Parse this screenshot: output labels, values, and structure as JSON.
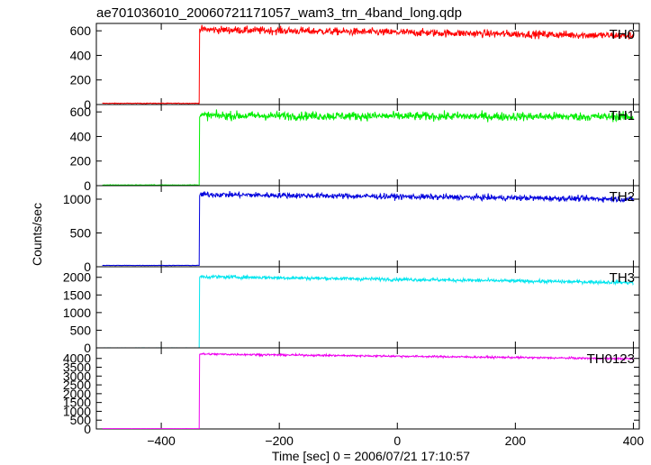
{
  "chart_data": {
    "type": "line",
    "title": "ae701036010_20060721171057_wam3_trn_4band_long.qdp",
    "xlabel": "Time [sec] 0 = 2006/07/21 17:10:57",
    "ylabel": "Counts/sec",
    "xlim": [
      -510,
      410
    ],
    "xticks": [
      -400,
      -200,
      0,
      200,
      400
    ],
    "xtick_labels": [
      "−400",
      "−200",
      "0",
      "200",
      "400"
    ],
    "grid": false,
    "panels": [
      {
        "name": "TH0",
        "color": "#ff0000",
        "ylim": [
          0,
          660
        ],
        "yticks": [
          0,
          200,
          400,
          600
        ],
        "t_start": -500,
        "t_end": 400,
        "t_rise": -335,
        "pre_level": 10,
        "post_start": 610,
        "post_end": 560,
        "noise": 22
      },
      {
        "name": "TH1",
        "color": "#00ee00",
        "ylim": [
          0,
          660
        ],
        "yticks": [
          0,
          200,
          400,
          600
        ],
        "t_start": -500,
        "t_end": 400,
        "t_rise": -335,
        "pre_level": 5,
        "post_start": 570,
        "post_end": 560,
        "noise": 25
      },
      {
        "name": "TH2",
        "color": "#0000dd",
        "ylim": [
          0,
          1200
        ],
        "yticks": [
          0,
          500,
          1000
        ],
        "t_start": -500,
        "t_end": 400,
        "t_rise": -335,
        "pre_level": 20,
        "post_start": 1070,
        "post_end": 1000,
        "noise": 30
      },
      {
        "name": "TH3",
        "color": "#00e5ee",
        "ylim": [
          0,
          2300
        ],
        "yticks": [
          0,
          500,
          1000,
          1500,
          2000
        ],
        "t_start": -500,
        "t_end": 400,
        "t_rise": -335,
        "pre_level": 0,
        "post_start": 2020,
        "post_end": 1850,
        "noise": 35
      },
      {
        "name": "TH0123",
        "color": "#ee00ee",
        "ylim": [
          0,
          4600
        ],
        "yticks": [
          0,
          500,
          1000,
          1500,
          2000,
          2500,
          3000,
          3500,
          4000
        ],
        "t_start": -500,
        "t_end": 400,
        "t_rise": -335,
        "pre_level": 20,
        "post_start": 4250,
        "post_end": 3980,
        "noise": 40
      }
    ]
  }
}
